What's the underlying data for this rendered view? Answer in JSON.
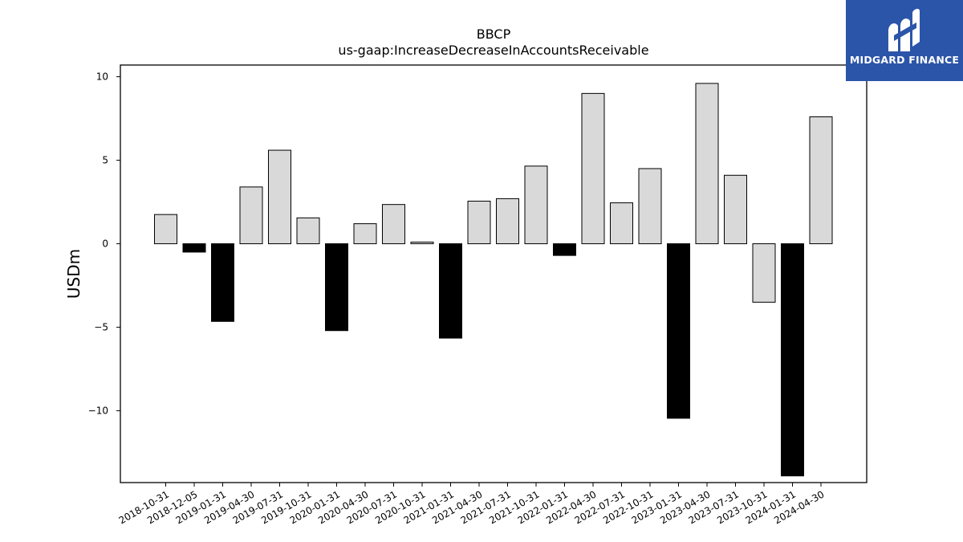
{
  "chart_data": {
    "type": "bar",
    "title": "BBCP",
    "subtitle": "us-gaap:IncreaseDecreaseInAccountsReceivable",
    "xlabel": "",
    "ylabel": "USDm",
    "ylim": [
      -14.3,
      10.7
    ],
    "yticks": [
      10,
      5,
      0,
      -5,
      -10
    ],
    "ytick_labels": [
      "10",
      "5",
      "0",
      "−5",
      "−10"
    ],
    "categories": [
      "2018-10-31",
      "2018-12-05",
      "2019-01-31",
      "2019-04-30",
      "2019-07-31",
      "2019-10-31",
      "2020-01-31",
      "2020-04-30",
      "2020-07-31",
      "2020-10-31",
      "2021-01-31",
      "2021-04-30",
      "2021-07-31",
      "2021-10-31",
      "2022-01-31",
      "2022-04-30",
      "2022-07-31",
      "2022-10-31",
      "2023-01-31",
      "2023-04-30",
      "2023-07-31",
      "2023-10-31",
      "2024-01-31",
      "2024-04-30"
    ],
    "values": [
      1.75,
      -0.5,
      -4.65,
      3.4,
      5.6,
      1.55,
      -5.2,
      1.2,
      2.35,
      0.1,
      -5.65,
      2.55,
      2.7,
      4.65,
      -0.7,
      9.0,
      2.45,
      4.5,
      -10.45,
      9.6,
      4.1,
      -3.5,
      -13.9,
      7.6
    ],
    "bar_style": [
      "light",
      "dark",
      "dark",
      "light",
      "light",
      "light",
      "dark",
      "light",
      "light",
      "light",
      "dark",
      "light",
      "light",
      "light",
      "dark",
      "light",
      "light",
      "light",
      "dark",
      "light",
      "light",
      "light",
      "dark",
      "light"
    ],
    "colors": {
      "light": "#d9d9d9",
      "dark": "#000000",
      "edge": "#000000"
    },
    "grid": false,
    "legend": "none"
  },
  "logo": {
    "text": "MIDGARD FINANCE",
    "background": "#2b55a8"
  }
}
